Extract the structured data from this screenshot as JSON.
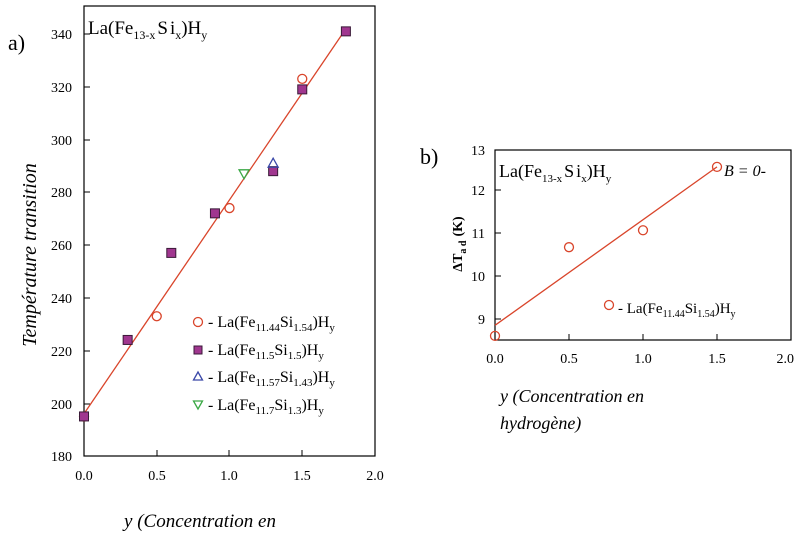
{
  "chart_data": [
    {
      "panel_label": "a)",
      "type": "scatter",
      "title": "La(Fe13-xSix)Hy",
      "title_parts": {
        "a": "La(Fe",
        "b": "13-x",
        "c": "S",
        "d": "i",
        "e": "x",
        "f": ")H",
        "g": "y"
      },
      "ylabel": "Température transition",
      "xlabel": "y (Concentration en",
      "xlim": [
        0.0,
        2.0
      ],
      "ylim": [
        180,
        350
      ],
      "x_ticks": [
        "0.0",
        "0.5",
        "1.0",
        "1.5",
        "2.0"
      ],
      "y_ticks": [
        "180",
        "200",
        "220",
        "240",
        "260",
        "280",
        "300",
        "320",
        "340"
      ],
      "grid": false,
      "legend_position": "center-right",
      "series": [
        {
          "name": "La(Fe11.44Si1.54)Hy",
          "legend": [
            "- La(Fe",
            "11.44",
            "Si",
            "1.54",
            ")H",
            "y"
          ],
          "marker": "circle-open",
          "color": "#d9452b",
          "x": [
            0.0,
            0.5,
            1.0,
            1.5
          ],
          "y": [
            195,
            233,
            274,
            323
          ]
        },
        {
          "name": "La(Fe11.5Si1.5)Hy",
          "legend": [
            "- La(Fe",
            "11.5",
            "Si",
            "1.5",
            ")H",
            "y"
          ],
          "marker": "square-filled",
          "color": "#a0368f",
          "x": [
            0.0,
            0.3,
            0.6,
            0.9,
            1.3,
            1.5,
            1.8
          ],
          "y": [
            195,
            224,
            257,
            272,
            288,
            319,
            341
          ]
        },
        {
          "name": "La(Fe11.57Si1.43)Hy",
          "legend": [
            "- La(Fe",
            "11.57",
            "Si",
            "1.43",
            ")H",
            "y"
          ],
          "marker": "triangle-up-open",
          "color": "#3a48a8",
          "x": [
            1.3
          ],
          "y": [
            291
          ]
        },
        {
          "name": "La(Fe11.7Si1.3)Hy",
          "legend": [
            "- La(Fe",
            "11.7",
            "Si",
            "1.3",
            ")H",
            "y"
          ],
          "marker": "triangle-down-open",
          "color": "#3aa845",
          "x": [
            1.1
          ],
          "y": [
            287
          ]
        }
      ],
      "fit_line": {
        "color": "#d9452b",
        "x": [
          0.0,
          1.8
        ],
        "y": [
          196,
          342
        ]
      }
    },
    {
      "panel_label": "b)",
      "type": "scatter",
      "title": "La(Fe13-xSix)Hy",
      "title_parts": {
        "a": "La(Fe",
        "b": "13-x",
        "c": "S",
        "d": "i",
        "e": "x",
        "f": ")H",
        "g": "y"
      },
      "annotation": "B = 0-",
      "ylabel": "ΔTad (K)",
      "ylabel_parts": {
        "a": "ΔT",
        "b": "a d",
        "c": "(K)"
      },
      "xlabel": "y (Concentration en hydrogène)",
      "xlabel_lines": [
        "y (Concentration en",
        "hydrogène)"
      ],
      "xlim": [
        0.0,
        2.0
      ],
      "ylim": [
        8.6,
        13
      ],
      "x_ticks": [
        "0.0",
        "0.5",
        "1.0",
        "1.5",
        "2.0"
      ],
      "y_ticks": [
        "9",
        "10",
        "11",
        "12",
        "13"
      ],
      "grid": false,
      "legend_position": "lower-right",
      "series": [
        {
          "name": "La(Fe11.44Si1.54)Hy",
          "legend": [
            "- La(Fe",
            "11.44",
            "Si",
            "1.54",
            ")H",
            "y"
          ],
          "marker": "circle-open",
          "color": "#d9452b",
          "x": [
            0.0,
            0.5,
            1.0,
            1.5
          ],
          "y": [
            8.6,
            10.7,
            11.1,
            12.6
          ]
        }
      ],
      "fit_line": {
        "color": "#d9452b",
        "x": [
          0.0,
          1.5
        ],
        "y": [
          8.85,
          12.6
        ]
      }
    }
  ]
}
